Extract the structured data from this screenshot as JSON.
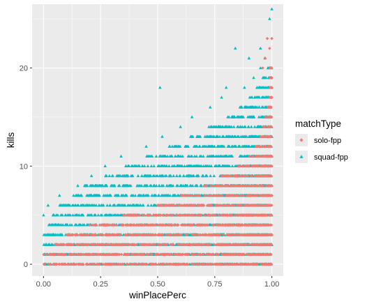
{
  "chart_data": {
    "type": "scatter",
    "xlabel": "winPlacePerc",
    "ylabel": "kills",
    "xlim": [
      -0.05,
      1.05
    ],
    "ylim": [
      -1.2,
      26.5
    ],
    "x_ticks": [
      0.0,
      0.25,
      0.5,
      0.75,
      1.0
    ],
    "x_tick_labels": [
      "0.00",
      "0.25",
      "0.50",
      "0.75",
      "1.00"
    ],
    "y_ticks": [
      0,
      10,
      20
    ],
    "y_tick_labels": [
      "0",
      "10",
      "20"
    ],
    "grid": true,
    "legend": {
      "title": "matchType",
      "position": "right"
    },
    "series": [
      {
        "name": "solo-fpp",
        "marker": "diamond",
        "color": "#F8766D",
        "bands": [
          {
            "kills": 0,
            "x_range": [
              0.0,
              1.0
            ]
          },
          {
            "kills": 1,
            "x_range": [
              0.0,
              1.0
            ]
          },
          {
            "kills": 2,
            "x_range": [
              0.05,
              1.0
            ]
          },
          {
            "kills": 3,
            "x_range": [
              0.1,
              1.0
            ]
          },
          {
            "kills": 4,
            "x_range": [
              0.2,
              1.0
            ]
          },
          {
            "kills": 5,
            "x_range": [
              0.35,
              1.0
            ]
          },
          {
            "kills": 6,
            "x_range": [
              0.5,
              1.0
            ]
          },
          {
            "kills": 7,
            "x_range": [
              0.6,
              1.0
            ]
          },
          {
            "kills": 8,
            "x_range": [
              0.7,
              1.0
            ]
          },
          {
            "kills": 9,
            "x_range": [
              0.78,
              1.0
            ]
          },
          {
            "kills": 10,
            "x_range": [
              0.85,
              1.0
            ]
          },
          {
            "kills": 11,
            "x_range": [
              0.9,
              1.0
            ]
          },
          {
            "kills": 12,
            "x_range": [
              0.93,
              1.0
            ]
          },
          {
            "kills": 13,
            "x_range": [
              0.95,
              1.0
            ]
          },
          {
            "kills": 14,
            "x_range": [
              0.96,
              1.0
            ]
          },
          {
            "kills": 15,
            "x_range": [
              0.97,
              1.0
            ]
          },
          {
            "kills": 16,
            "x_range": [
              0.98,
              1.0
            ]
          },
          {
            "kills": 17,
            "x_range": [
              0.99,
              1.0
            ]
          },
          {
            "kills": 18,
            "x_range": [
              0.99,
              1.0
            ]
          },
          {
            "kills": 19,
            "x_range": [
              0.99,
              1.0
            ]
          },
          {
            "kills": 20,
            "x_range": [
              0.99,
              1.0
            ]
          }
        ],
        "outliers": [
          {
            "x": 0.96,
            "y": 20
          },
          {
            "x": 0.97,
            "y": 21
          },
          {
            "x": 0.99,
            "y": 22
          },
          {
            "x": 0.98,
            "y": 23
          },
          {
            "x": 1.0,
            "y": 23
          }
        ]
      },
      {
        "name": "squad-fpp",
        "marker": "triangle",
        "color": "#00BFC4",
        "bands": [
          {
            "kills": 0,
            "x_range": [
              0.0,
              1.0
            ]
          },
          {
            "kills": 1,
            "x_range": [
              0.0,
              1.0
            ]
          },
          {
            "kills": 2,
            "x_range": [
              0.0,
              1.0
            ]
          },
          {
            "kills": 3,
            "x_range": [
              0.0,
              1.0
            ]
          },
          {
            "kills": 4,
            "x_range": [
              0.02,
              1.0
            ]
          },
          {
            "kills": 5,
            "x_range": [
              0.04,
              1.0
            ]
          },
          {
            "kills": 6,
            "x_range": [
              0.07,
              1.0
            ]
          },
          {
            "kills": 7,
            "x_range": [
              0.13,
              1.0
            ]
          },
          {
            "kills": 8,
            "x_range": [
              0.18,
              1.0
            ]
          },
          {
            "kills": 9,
            "x_range": [
              0.27,
              1.0
            ]
          },
          {
            "kills": 10,
            "x_range": [
              0.35,
              1.0
            ]
          },
          {
            "kills": 11,
            "x_range": [
              0.45,
              1.0
            ]
          },
          {
            "kills": 12,
            "x_range": [
              0.55,
              1.0
            ]
          },
          {
            "kills": 13,
            "x_range": [
              0.64,
              1.0
            ]
          },
          {
            "kills": 14,
            "x_range": [
              0.72,
              1.0
            ]
          },
          {
            "kills": 15,
            "x_range": [
              0.8,
              1.0
            ]
          },
          {
            "kills": 16,
            "x_range": [
              0.86,
              1.0
            ]
          },
          {
            "kills": 17,
            "x_range": [
              0.9,
              1.0
            ]
          },
          {
            "kills": 18,
            "x_range": [
              0.93,
              1.0
            ]
          },
          {
            "kills": 19,
            "x_range": [
              0.96,
              1.0
            ]
          },
          {
            "kills": 20,
            "x_range": [
              0.98,
              1.0
            ]
          }
        ],
        "outliers": [
          {
            "x": 0.0,
            "y": 5
          },
          {
            "x": 0.02,
            "y": 6
          },
          {
            "x": 0.07,
            "y": 7
          },
          {
            "x": 0.15,
            "y": 8
          },
          {
            "x": 0.21,
            "y": 9
          },
          {
            "x": 0.27,
            "y": 10
          },
          {
            "x": 0.34,
            "y": 11
          },
          {
            "x": 0.45,
            "y": 12
          },
          {
            "x": 0.52,
            "y": 13
          },
          {
            "x": 0.6,
            "y": 14
          },
          {
            "x": 0.65,
            "y": 15
          },
          {
            "x": 0.73,
            "y": 16
          },
          {
            "x": 0.78,
            "y": 17
          },
          {
            "x": 0.51,
            "y": 18
          },
          {
            "x": 0.8,
            "y": 18
          },
          {
            "x": 0.88,
            "y": 18
          },
          {
            "x": 0.92,
            "y": 19
          },
          {
            "x": 0.95,
            "y": 20
          },
          {
            "x": 0.9,
            "y": 21
          },
          {
            "x": 0.97,
            "y": 21
          },
          {
            "x": 0.84,
            "y": 22
          },
          {
            "x": 0.95,
            "y": 22
          },
          {
            "x": 0.99,
            "y": 25
          },
          {
            "x": 1.0,
            "y": 26
          }
        ]
      }
    ]
  }
}
